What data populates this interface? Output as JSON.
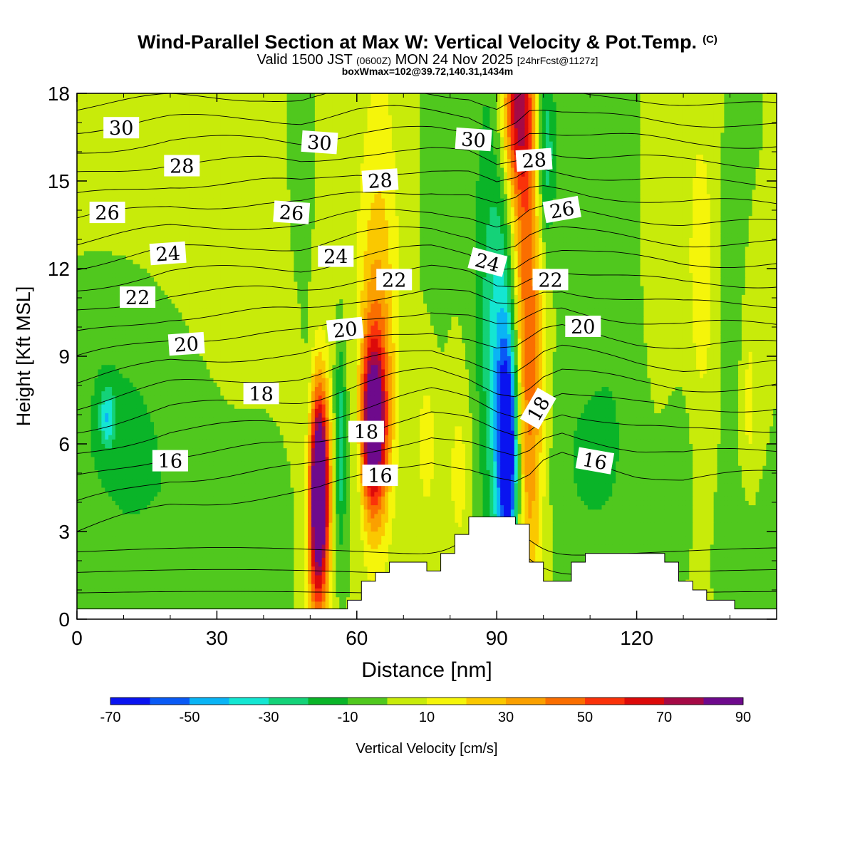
{
  "header": {
    "title": "Wind-Parallel Section at Max W: Vertical Velocity & Pot.Temp.",
    "copyright": "(C)",
    "valid_prefix": "Valid 1500 JST",
    "valid_utc": "(0600Z)",
    "valid_date": "MON 24 Nov 2025",
    "forecast": "[24hrFcst@1127z]",
    "boxinfo": "boxWmax=102@39.72,140.31,1434m"
  },
  "chart_data": {
    "type": "heatmap",
    "title": "Wind-Parallel Section at Max W: Vertical Velocity & Pot.Temp.",
    "xlabel": "Distance [nm]",
    "ylabel": "Height [Kft MSL]",
    "xlim": [
      0,
      150
    ],
    "ylim": [
      0,
      18
    ],
    "xticks": [
      0,
      30,
      60,
      90,
      120
    ],
    "yticks": [
      0,
      3,
      6,
      9,
      12,
      15,
      18
    ],
    "colorbar": {
      "label": "Vertical Velocity [cm/s]",
      "ticks": [
        -70,
        -50,
        -30,
        -10,
        10,
        30,
        50,
        70,
        90
      ],
      "bounds": [
        -70,
        -60,
        -50,
        -40,
        -30,
        -20,
        -10,
        0,
        10,
        20,
        30,
        40,
        50,
        60,
        70,
        80,
        90
      ],
      "colors": [
        "#0a14f0",
        "#0a5af5",
        "#0ab4f5",
        "#14e6d2",
        "#14d278",
        "#0ab428",
        "#50c81e",
        "#c8eb0a",
        "#f5f50a",
        "#fac800",
        "#faa000",
        "#fa6e00",
        "#fa320a",
        "#dc0a0a",
        "#a50a46",
        "#6e0a8c"
      ]
    },
    "terrain": [
      [
        0,
        0.35
      ],
      [
        58,
        0.35
      ],
      [
        58,
        0.65
      ],
      [
        61,
        0.65
      ],
      [
        61,
        1.3
      ],
      [
        64,
        1.3
      ],
      [
        64,
        1.6
      ],
      [
        67,
        1.6
      ],
      [
        67,
        1.95
      ],
      [
        75,
        1.95
      ],
      [
        75,
        1.65
      ],
      [
        78,
        1.65
      ],
      [
        78,
        2.25
      ],
      [
        81,
        2.25
      ],
      [
        81,
        2.9
      ],
      [
        84,
        2.9
      ],
      [
        84,
        3.5
      ],
      [
        94,
        3.5
      ],
      [
        94,
        3.25
      ],
      [
        97,
        3.25
      ],
      [
        97,
        1.95
      ],
      [
        100,
        1.95
      ],
      [
        100,
        1.3
      ],
      [
        106,
        1.3
      ],
      [
        106,
        1.95
      ],
      [
        109,
        1.95
      ],
      [
        109,
        2.25
      ],
      [
        126,
        2.25
      ],
      [
        126,
        1.95
      ],
      [
        129,
        1.95
      ],
      [
        129,
        1.3
      ],
      [
        132,
        1.3
      ],
      [
        132,
        1.0
      ],
      [
        135,
        1.0
      ],
      [
        135,
        0.65
      ],
      [
        141,
        0.65
      ],
      [
        141,
        0.35
      ],
      [
        150,
        0.35
      ]
    ],
    "wcells": [
      {
        "x": 52,
        "y": 4.6,
        "sx": 1.4,
        "sy": 2.2,
        "v": 90
      },
      {
        "x": 51.5,
        "y": 3.0,
        "sx": 1.8,
        "sy": 3.2,
        "v": 45
      },
      {
        "x": 63.5,
        "y": 6.6,
        "sx": 1.8,
        "sy": 1.8,
        "v": 75
      },
      {
        "x": 64,
        "y": 7.4,
        "sx": 2.6,
        "sy": 3.6,
        "v": 35
      },
      {
        "x": 65,
        "y": 12.5,
        "sx": 3.0,
        "sy": 5.5,
        "v": 14
      },
      {
        "x": 96,
        "y": 13.0,
        "sx": 2.2,
        "sy": 9.0,
        "v": 42
      },
      {
        "x": 94,
        "y": 17.5,
        "sx": 2.2,
        "sy": 2.0,
        "v": 50
      },
      {
        "x": 98,
        "y": 7.5,
        "sx": 2.0,
        "sy": 5.0,
        "v": 18
      },
      {
        "x": 92.5,
        "y": 5.5,
        "sx": 1.6,
        "sy": 3.0,
        "v": -70
      },
      {
        "x": 91,
        "y": 8.5,
        "sx": 2.6,
        "sy": 4.5,
        "v": -30
      },
      {
        "x": 100.5,
        "y": 16,
        "sx": 1.5,
        "sy": 2.5,
        "v": -30
      },
      {
        "x": 56.5,
        "y": 6.0,
        "sx": 0.9,
        "sy": 2.5,
        "v": -30
      },
      {
        "x": 49.5,
        "y": 5.5,
        "sx": 1.0,
        "sy": 3.0,
        "v": -12
      },
      {
        "x": 60,
        "y": 6.0,
        "sx": 1.0,
        "sy": 2.5,
        "v": -12
      },
      {
        "x": 10,
        "y": 7.0,
        "sx": 12.0,
        "sy": 4.0,
        "v": -14
      },
      {
        "x": 6.5,
        "y": 6.9,
        "sx": 1.2,
        "sy": 0.7,
        "v": -30
      },
      {
        "x": 28,
        "y": 15,
        "sx": 25.0,
        "sy": 6.0,
        "v": 8
      },
      {
        "x": 48,
        "y": 16.5,
        "sx": 2.5,
        "sy": 4.0,
        "v": -12
      },
      {
        "x": 88,
        "y": 13,
        "sx": 3.0,
        "sy": 7.0,
        "v": -12
      },
      {
        "x": 77,
        "y": 15,
        "sx": 3.0,
        "sy": 5.0,
        "v": -4
      },
      {
        "x": 82,
        "y": 5.0,
        "sx": 2.0,
        "sy": 2.5,
        "v": 14
      },
      {
        "x": 75,
        "y": 6.0,
        "sx": 1.6,
        "sy": 2.0,
        "v": 15
      },
      {
        "x": 110,
        "y": 5.5,
        "sx": 6.0,
        "sy": 2.5,
        "v": -12
      },
      {
        "x": 116,
        "y": 14,
        "sx": 4.0,
        "sy": 6.0,
        "v": -8
      },
      {
        "x": 126,
        "y": 15,
        "sx": 6.0,
        "sy": 5.0,
        "v": 6
      },
      {
        "x": 134,
        "y": 11.5,
        "sx": 2.0,
        "sy": 4.0,
        "v": 14
      },
      {
        "x": 144,
        "y": 7.5,
        "sx": 1.5,
        "sy": 3.0,
        "v": 14
      },
      {
        "x": 141,
        "y": 11,
        "sx": 2.0,
        "sy": 4.0,
        "v": -8
      },
      {
        "x": 143,
        "y": 3.0,
        "sx": 3.0,
        "sy": 1.5,
        "v": -8
      },
      {
        "x": 130,
        "y": 6.0,
        "sx": 3.0,
        "sy": 2.0,
        "v": -4
      },
      {
        "x": 30,
        "y": 3.5,
        "sx": 8.0,
        "sy": 2.0,
        "v": -8
      },
      {
        "x": 40,
        "y": 2.5,
        "sx": 3.0,
        "sy": 3.0,
        "v": -6
      },
      {
        "x": 10,
        "y": 1.0,
        "sx": 6.0,
        "sy": 1.5,
        "v": -4
      }
    ],
    "theta_contours": {
      "levels": [
        13,
        14,
        15,
        16,
        17,
        18,
        19,
        20,
        21,
        22,
        23,
        24,
        25,
        26,
        27,
        28,
        29,
        30,
        31,
        32
      ],
      "anchors_x": [
        0,
        20,
        40,
        48,
        52,
        56,
        60,
        64,
        68,
        76,
        84,
        90,
        94,
        97,
        100,
        104,
        110,
        120,
        130,
        140,
        150
      ],
      "base_kft": [
        3.0,
        3.9,
        4.2,
        4.3,
        4.4,
        4.6,
        4.8,
        5.0,
        5.2,
        5.5,
        5.2,
        4.8,
        4.6,
        4.8,
        5.3,
        5.6,
        5.4,
        5.0,
        4.8,
        4.9,
        5.0
      ],
      "upper_kft": [
        18.3,
        18.6,
        18.6,
        18.5,
        18.6,
        18.7,
        18.8,
        18.8,
        18.8,
        18.7,
        18.6,
        18.2,
        18.5,
        18.9,
        18.8,
        18.6,
        18.5,
        18.5,
        18.4,
        18.3,
        18.2
      ]
    },
    "theta_labels": [
      {
        "text": "30",
        "x": 9.5,
        "y": 16.8,
        "rot": 0
      },
      {
        "text": "28",
        "x": 22.5,
        "y": 15.5,
        "rot": 0
      },
      {
        "text": "26",
        "x": 6.5,
        "y": 13.9,
        "rot": 0
      },
      {
        "text": "24",
        "x": 19.5,
        "y": 12.5,
        "rot": -4
      },
      {
        "text": "22",
        "x": 13,
        "y": 11.0,
        "rot": 0
      },
      {
        "text": "20",
        "x": 23.5,
        "y": 9.4,
        "rot": -4
      },
      {
        "text": "18",
        "x": 39.5,
        "y": 7.7,
        "rot": 0
      },
      {
        "text": "16",
        "x": 20,
        "y": 5.4,
        "rot": 0
      },
      {
        "text": "30",
        "x": 52,
        "y": 16.3,
        "rot": 4
      },
      {
        "text": "26",
        "x": 46,
        "y": 13.9,
        "rot": 4
      },
      {
        "text": "24",
        "x": 55.5,
        "y": 12.4,
        "rot": 0
      },
      {
        "text": "28",
        "x": 65,
        "y": 15.0,
        "rot": -4
      },
      {
        "text": "22",
        "x": 68,
        "y": 11.6,
        "rot": 0
      },
      {
        "text": "20",
        "x": 57.5,
        "y": 9.9,
        "rot": -6
      },
      {
        "text": "18",
        "x": 62,
        "y": 6.4,
        "rot": 0
      },
      {
        "text": "16",
        "x": 65,
        "y": 4.9,
        "rot": 0
      },
      {
        "text": "30",
        "x": 85,
        "y": 16.4,
        "rot": 4
      },
      {
        "text": "28",
        "x": 98,
        "y": 15.7,
        "rot": -4
      },
      {
        "text": "26",
        "x": 104,
        "y": 14.0,
        "rot": -10
      },
      {
        "text": "24",
        "x": 88,
        "y": 12.2,
        "rot": 15
      },
      {
        "text": "22",
        "x": 101.5,
        "y": 11.6,
        "rot": 0
      },
      {
        "text": "20",
        "x": 108.5,
        "y": 10.0,
        "rot": 0
      },
      {
        "text": "18",
        "x": 99,
        "y": 7.2,
        "rot": -60
      },
      {
        "text": "16",
        "x": 111,
        "y": 5.4,
        "rot": 10
      }
    ]
  }
}
